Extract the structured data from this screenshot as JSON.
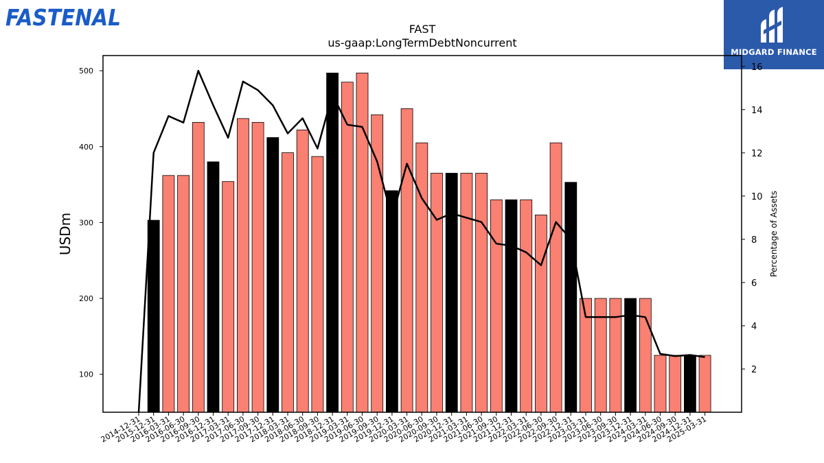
{
  "brand": {
    "left_logo_text": "FASTENAL",
    "left_logo_color": "#1a5cc8",
    "right_logo_text": "MIDGARD FINANCE",
    "right_logo_bg": "#2b5aab"
  },
  "chart_data": {
    "type": "bar",
    "title": "FAST",
    "subtitle": "us-gaap:LongTermDebtNoncurrent",
    "ylabel": "USDm",
    "y2label": "Percentage of Assets",
    "ylim": [
      50,
      520
    ],
    "y2lim": [
      0,
      16.5
    ],
    "yticks": [
      100,
      200,
      300,
      400,
      500
    ],
    "y2ticks": [
      2,
      4,
      6,
      8,
      10,
      12,
      14,
      16
    ],
    "bar_color": "#fa8072",
    "highlight_color": "#000000",
    "line_color": "#000000",
    "categories": [
      "2014-12-31",
      "2015-12-31",
      "2016-03-31",
      "2016-06-30",
      "2016-09-30",
      "2016-12-31",
      "2017-03-31",
      "2017-06-30",
      "2017-09-30",
      "2017-12-31",
      "2018-03-31",
      "2018-06-30",
      "2018-09-30",
      "2018-12-31",
      "2019-03-31",
      "2019-06-30",
      "2019-09-30",
      "2019-12-31",
      "2020-03-31",
      "2020-06-30",
      "2020-09-30",
      "2020-12-31",
      "2021-03-31",
      "2021-06-30",
      "2021-09-30",
      "2021-12-31",
      "2022-03-31",
      "2022-06-30",
      "2022-09-30",
      "2022-12-31",
      "2023-03-31",
      "2023-06-30",
      "2023-09-30",
      "2023-12-31",
      "2024-03-31",
      "2024-06-30",
      "2024-09-30",
      "2024-12-31",
      "2025-03-31"
    ],
    "series": [
      {
        "kind": "bar",
        "values": [
          null,
          303,
          362,
          362,
          432,
          380,
          354,
          437,
          432,
          412,
          392,
          422,
          387,
          497,
          485,
          497,
          442,
          342,
          450,
          405,
          365,
          365,
          365,
          365,
          330,
          330,
          330,
          310,
          405,
          353,
          200,
          200,
          200,
          200,
          200,
          125,
          125,
          125,
          125
        ],
        "highlight": [
          false,
          true,
          false,
          false,
          false,
          true,
          false,
          false,
          false,
          true,
          false,
          false,
          false,
          true,
          false,
          false,
          false,
          true,
          false,
          false,
          false,
          true,
          false,
          false,
          false,
          true,
          false,
          false,
          false,
          true,
          false,
          false,
          false,
          true,
          false,
          false,
          false,
          true,
          false
        ]
      },
      {
        "kind": "line",
        "axis": "right",
        "values": [
          null,
          12.0,
          13.7,
          13.4,
          15.8,
          14.2,
          12.7,
          15.3,
          14.9,
          14.2,
          12.9,
          13.6,
          12.2,
          14.7,
          13.3,
          13.2,
          11.6,
          9.0,
          11.5,
          9.9,
          8.9,
          9.2,
          9.0,
          8.8,
          7.8,
          7.7,
          7.4,
          6.8,
          8.8,
          8.0,
          4.4,
          4.4,
          4.4,
          4.5,
          4.4,
          2.7,
          2.6,
          2.65,
          2.55
        ]
      }
    ]
  }
}
